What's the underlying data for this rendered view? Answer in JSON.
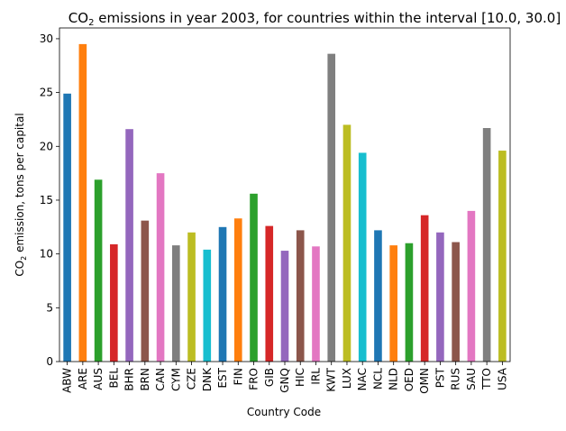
{
  "chart_data": {
    "type": "bar",
    "title_main": "CO",
    "title_sub": "2",
    "title_rest": " emissions in year 2003, for countries within the interval [10.0, 30.0]",
    "xlabel": "Country Code",
    "ylabel_main": "CO",
    "ylabel_sub": "2",
    "ylabel_rest": " emission, tons per capital",
    "ylim": [
      0,
      31
    ],
    "yticks": [
      0,
      5,
      10,
      15,
      20,
      25,
      30
    ],
    "grid": false,
    "categories": [
      "ABW",
      "ARE",
      "AUS",
      "BEL",
      "BHR",
      "BRN",
      "CAN",
      "CYM",
      "CZE",
      "DNK",
      "EST",
      "FIN",
      "FRO",
      "GIB",
      "GNQ",
      "HIC",
      "IRL",
      "KWT",
      "LUX",
      "NAC",
      "NCL",
      "NLD",
      "OED",
      "OMN",
      "PST",
      "RUS",
      "SAU",
      "TTO",
      "USA"
    ],
    "values": [
      24.9,
      29.5,
      16.9,
      10.9,
      21.6,
      13.1,
      17.5,
      10.8,
      12.0,
      10.4,
      12.5,
      13.3,
      15.6,
      12.6,
      10.3,
      12.2,
      10.7,
      28.6,
      22.0,
      19.4,
      12.2,
      10.8,
      11.0,
      13.6,
      12.0,
      11.1,
      14.0,
      21.7,
      19.6
    ],
    "colors": [
      "#1f77b4",
      "#ff7f0e",
      "#2ca02c",
      "#d62728",
      "#9467bd",
      "#8c564b",
      "#e377c2",
      "#7f7f7f",
      "#bcbd22",
      "#17becf"
    ]
  }
}
